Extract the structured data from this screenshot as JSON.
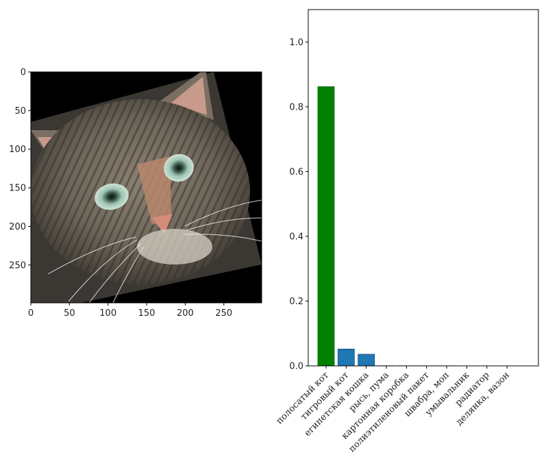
{
  "chart_data": [
    {
      "type": "image",
      "x_ticks": [
        "0",
        "50",
        "100",
        "150",
        "200",
        "250"
      ],
      "y_ticks": [
        "0",
        "50",
        "100",
        "150",
        "200",
        "250"
      ],
      "xlim": [
        0,
        299
      ],
      "ylim": [
        299,
        0
      ]
    },
    {
      "type": "bar",
      "categories": [
        "полосатый кот",
        "тигровый кот",
        "египетская кошка",
        "рысь, пума",
        "картонная коробка",
        "полиэтиленовый пакет",
        "швабра, моп",
        "умывальник",
        "радиатор",
        "делянка, вазон"
      ],
      "values": [
        0.862,
        0.052,
        0.036,
        0.0005,
        0.0004,
        0.0003,
        0.0003,
        0.0002,
        0.0002,
        0.0002
      ],
      "bar_colors": [
        "#008000",
        "#1f77b4",
        "#1f77b4",
        "#1f77b4",
        "#1f77b4",
        "#1f77b4",
        "#1f77b4",
        "#1f77b4",
        "#1f77b4",
        "#1f77b4"
      ],
      "ylim": [
        0,
        1.1
      ],
      "y_ticks": [
        "0.0",
        "0.2",
        "0.4",
        "0.6",
        "0.8",
        "1.0"
      ],
      "xlabel": "",
      "ylabel": "",
      "title": ""
    }
  ],
  "image_panel": {
    "subject_icon": "tabby-cat-face-icon"
  }
}
